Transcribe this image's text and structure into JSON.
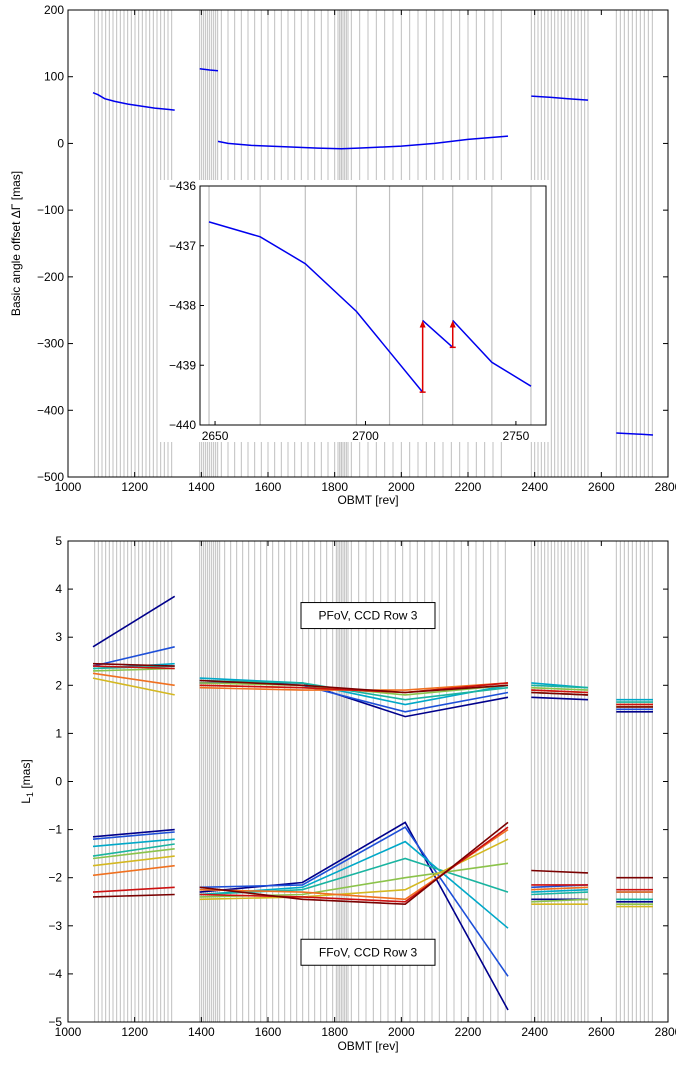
{
  "chart_data": [
    {
      "type": "line",
      "id": "top",
      "xlabel": "OBMT [rev]",
      "ylabel": "Basic angle offset  ΔΓ [mas]",
      "xlim": [
        1000,
        2800
      ],
      "ylim": [
        -500,
        200
      ],
      "xticks": [
        1000,
        1200,
        1400,
        1600,
        1800,
        2000,
        2200,
        2400,
        2600,
        2800
      ],
      "yticks": [
        -500,
        -400,
        -300,
        -200,
        -100,
        0,
        100,
        200
      ],
      "series": [
        {
          "color": "#0000ee",
          "x": [
            1075,
            1090,
            1110,
            1140,
            1180,
            1220,
            1260,
            1300,
            1320
          ],
          "y": [
            76,
            73,
            67,
            63,
            59,
            56,
            53,
            51,
            50
          ]
        },
        {
          "color": "#0000ee",
          "x": [
            1395,
            1410,
            1425,
            1450
          ],
          "y": [
            112,
            111,
            110,
            109
          ]
        },
        {
          "color": "#0000ee",
          "x": [
            1450,
            1480,
            1550,
            1650,
            1750,
            1820,
            1870,
            1920,
            2000,
            2100,
            2200,
            2320
          ],
          "y": [
            3,
            0,
            -3,
            -5,
            -7,
            -8,
            -7,
            -6,
            -4,
            0,
            6,
            11
          ]
        },
        {
          "color": "#0000ee",
          "x": [
            2390,
            2420,
            2450,
            2500,
            2560
          ],
          "y": [
            71,
            70,
            69,
            67,
            65
          ]
        },
        {
          "color": "#0000ee",
          "x": [
            2645,
            2680,
            2720,
            2755
          ],
          "y": [
            -434,
            -435,
            -436,
            -437
          ]
        }
      ],
      "inset": {
        "xlim": [
          2645,
          2760
        ],
        "ylim": [
          -440,
          -436
        ],
        "xticks": [
          2650,
          2700,
          2750
        ],
        "yticks": [
          -440,
          -439,
          -438,
          -437,
          -436
        ],
        "series": [
          {
            "color": "#0000ee",
            "x": [
              2648,
              2665,
              2680,
              2697,
              2719
            ],
            "y": [
              -436.6,
              -436.85,
              -437.3,
              -438.1,
              -439.45
            ]
          },
          {
            "color": "#0000ee",
            "x": [
              2719,
              2729
            ],
            "y": [
              -438.25,
              -438.7
            ]
          },
          {
            "color": "#0000ee",
            "x": [
              2729,
              2742,
              2755
            ],
            "y": [
              -438.25,
              -438.95,
              -439.35
            ]
          }
        ],
        "arrows": [
          {
            "x": 2719,
            "y_from": -439.45,
            "y_to": -438.25,
            "color": "#dd0000"
          },
          {
            "x": 2729,
            "y_from": -438.7,
            "y_to": -438.25,
            "color": "#dd0000"
          }
        ]
      }
    },
    {
      "type": "line",
      "id": "bottom",
      "xlabel": "OBMT [rev]",
      "ylabel": "L",
      "ylabel_sub": "1",
      "ylabel_unit": " [mas]",
      "xlim": [
        1000,
        2800
      ],
      "ylim": [
        -5,
        5
      ],
      "xticks": [
        1000,
        1200,
        1400,
        1600,
        1800,
        2000,
        2200,
        2400,
        2600,
        2800
      ],
      "yticks": [
        -5,
        -4,
        -3,
        -2,
        -1,
        0,
        1,
        2,
        3,
        4,
        5
      ],
      "annotations": [
        {
          "text": "PFoV, CCD Row 3",
          "x": 1900,
          "y": 3.45
        },
        {
          "text": "FFoV, CCD Row 3",
          "x": 1900,
          "y": -3.55
        }
      ],
      "segments": [
        [
          1075,
          1320
        ],
        [
          1395,
          2320
        ],
        [
          2390,
          2560
        ],
        [
          2645,
          2755
        ]
      ],
      "series": [
        {
          "color": "#00008b",
          "seg": [
            [
              2.8,
              3.85
            ],
            [
              2.05,
              2.05,
              1.35,
              1.75
            ],
            [
              1.75,
              1.7
            ],
            [
              1.45,
              1.45
            ]
          ],
          "ff": [
            [
              -1.15,
              -1.0
            ],
            [
              -2.3,
              -2.1,
              -0.85,
              -4.75
            ],
            [
              -2.45,
              -2.45
            ],
            [
              -2.5,
              -2.5
            ]
          ]
        },
        {
          "color": "#1d4fd8",
          "seg": [
            [
              2.4,
              2.8
            ],
            [
              2.1,
              2.0,
              1.45,
              1.85
            ],
            [
              1.85,
              1.8
            ],
            [
              1.5,
              1.5
            ]
          ],
          "ff": [
            [
              -1.2,
              -1.05
            ],
            [
              -2.2,
              -2.15,
              -0.95,
              -4.05
            ],
            [
              -2.2,
              -2.15
            ],
            [
              -2.3,
              -2.3
            ]
          ]
        },
        {
          "color": "#00a8c8",
          "seg": [
            [
              2.35,
              2.45
            ],
            [
              2.15,
              2.05,
              1.6,
              2.0
            ],
            [
              2.05,
              1.95
            ],
            [
              1.7,
              1.7
            ]
          ],
          "ff": [
            [
              -1.35,
              -1.2
            ],
            [
              -2.35,
              -2.2,
              -1.25,
              -3.05
            ],
            [
              -2.3,
              -2.25
            ],
            [
              -2.45,
              -2.45
            ]
          ]
        },
        {
          "color": "#19b4a0",
          "seg": [
            [
              2.35,
              2.4
            ],
            [
              2.1,
              2.05,
              1.7,
              1.95
            ],
            [
              2.0,
              1.95
            ],
            [
              1.65,
              1.65
            ]
          ],
          "ff": [
            [
              -1.55,
              -1.3
            ],
            [
              -2.35,
              -2.25,
              -1.6,
              -2.3
            ]
          ],
          "ff_more": [
            [
              -2.35,
              -2.3
            ],
            [
              -2.45,
              -2.45
            ]
          ]
        },
        {
          "color": "#8bc34a",
          "seg": [
            [
              2.3,
              2.35
            ],
            [
              2.05,
              2.0,
              1.8,
              2.0
            ],
            [
              1.95,
              1.9
            ],
            [
              1.6,
              1.6
            ]
          ],
          "ff": [
            [
              -1.6,
              -1.4
            ],
            [
              -2.4,
              -2.35,
              -2.0,
              -1.7
            ]
          ],
          "ff_more": [
            [
              -2.5,
              -2.45
            ],
            [
              -2.55,
              -2.55
            ]
          ]
        },
        {
          "color": "#d4b820",
          "seg": [
            [
              2.15,
              1.8
            ],
            [
              2.0,
              1.95,
              1.85,
              2.05
            ],
            [
              1.85,
              1.8
            ],
            [
              1.55,
              1.55
            ]
          ],
          "ff": [
            [
              -1.75,
              -1.55
            ],
            [
              -2.45,
              -2.4,
              -2.25,
              -1.2
            ]
          ],
          "ff_more": [
            [
              -2.55,
              -2.55
            ],
            [
              -2.6,
              -2.6
            ]
          ]
        },
        {
          "color": "#f07020",
          "seg": [
            [
              2.25,
              2.0
            ],
            [
              1.95,
              1.9,
              1.9,
              2.05
            ],
            [
              1.9,
              1.85
            ],
            [
              1.6,
              1.6
            ]
          ],
          "ff": [
            [
              -1.95,
              -1.75
            ],
            [
              -2.25,
              -2.3,
              -2.45,
              -1.0
            ]
          ],
          "ff_more": [
            [
              -2.25,
              -2.2
            ],
            [
              -2.3,
              -2.3
            ]
          ]
        },
        {
          "color": "#cc1010",
          "seg": [
            [
              2.4,
              2.35
            ],
            [
              2.0,
              1.95,
              1.85,
              2.05
            ],
            [
              1.9,
              1.85
            ],
            [
              1.6,
              1.6
            ]
          ],
          "ff": [
            [
              -2.3,
              -2.2
            ],
            [
              -2.35,
              -2.4,
              -2.5,
              -0.95
            ]
          ],
          "ff_more": [
            [
              -2.15,
              -2.15
            ],
            [
              -2.25,
              -2.25
            ]
          ]
        },
        {
          "color": "#7a0000",
          "seg": [
            [
              2.45,
              2.4
            ],
            [
              2.1,
              2.0,
              1.85,
              2.0
            ],
            [
              1.85,
              1.8
            ],
            [
              1.55,
              1.55
            ]
          ],
          "ff": [
            [
              -2.4,
              -2.35
            ],
            [
              -2.2,
              -2.45,
              -2.55,
              -0.85
            ]
          ],
          "ff_more": [
            [
              -1.85,
              -1.9
            ],
            [
              -2.0,
              -2.0
            ]
          ]
        }
      ]
    }
  ]
}
